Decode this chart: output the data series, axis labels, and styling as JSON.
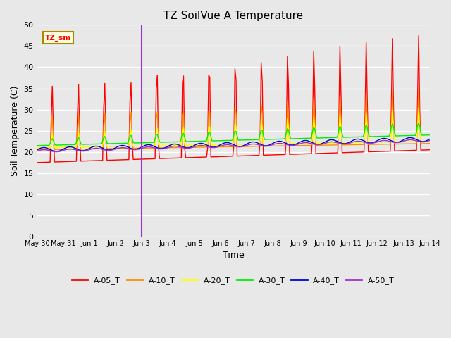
{
  "title": "TZ SoilVue A Temperature",
  "ylabel": "Soil Temperature (C)",
  "xlabel": "Time",
  "ylim": [
    0,
    50
  ],
  "yticks": [
    0,
    5,
    10,
    15,
    20,
    25,
    30,
    35,
    40,
    45,
    50
  ],
  "annotation_label": "TZ_sm",
  "vline_x": 4.0,
  "vline_color": "#9933CC",
  "bg_color": "#E8E8E8",
  "plot_bg_color": "#E8E8E8",
  "grid_color": "#FFFFFF",
  "series_colors": {
    "A-05_T": "#FF0000",
    "A-10_T": "#FF8C00",
    "A-20_T": "#FFFF00",
    "A-30_T": "#00EE00",
    "A-40_T": "#0000CC",
    "A-50_T": "#9933CC"
  },
  "xtick_labels": [
    "May 30",
    "May 31",
    "Jun 1",
    "Jun 2",
    "Jun 3",
    "Jun 4",
    "Jun 5",
    "Jun 6",
    "Jun 7",
    "Jun 8",
    "Jun 9",
    "Jun 10",
    "Jun 11",
    "Jun 12",
    "Jun 13",
    "Jun 14"
  ]
}
